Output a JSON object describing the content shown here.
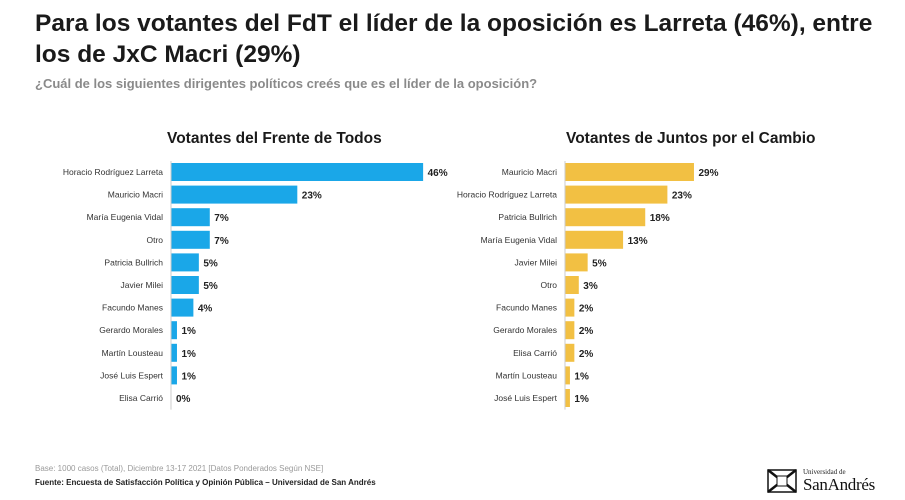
{
  "title": "Para los votantes del FdT el líder de la oposición es Larreta (46%), entre los de JxC Macri (29%)",
  "subtitle": "¿Cuál de los siguientes dirigentes políticos creés que es el líder de la oposición?",
  "chart_data": [
    {
      "type": "bar",
      "orientation": "horizontal",
      "title": "Votantes del Frente de Todos",
      "color": "#1aa7e8",
      "categories": [
        "Horacio Rodríguez Larreta",
        "Mauricio Macri",
        "María Eugenia Vidal",
        "Otro",
        "Patricia Bullrich",
        "Javier Milei",
        "Facundo Manes",
        "Gerardo Morales",
        "Martín Lousteau",
        "José Luis Espert",
        "Elisa Carrió"
      ],
      "values": [
        46,
        23,
        7,
        7,
        5,
        5,
        4,
        1,
        1,
        1,
        0
      ],
      "labels": [
        "46%",
        "23%",
        "7%",
        "7%",
        "5%",
        "5%",
        "4%",
        "1%",
        "1%",
        "1%",
        "0%"
      ],
      "unit": "%"
    },
    {
      "type": "bar",
      "orientation": "horizontal",
      "title": "Votantes de Juntos por el Cambio",
      "color": "#f2c043",
      "categories": [
        "Mauricio Macri",
        "Horacio Rodríguez Larreta",
        "Patricia Bullrich",
        "María Eugenia Vidal",
        "Javier Milei",
        "Otro",
        "Facundo Manes",
        "Gerardo Morales",
        "Elisa Carrió",
        "Martín Lousteau",
        "José Luis Espert"
      ],
      "values": [
        29,
        23,
        18,
        13,
        5,
        3,
        2,
        2,
        2,
        1,
        1
      ],
      "labels": [
        "29%",
        "23%",
        "18%",
        "13%",
        "5%",
        "3%",
        "2%",
        "2%",
        "2%",
        "1%",
        "1%"
      ],
      "unit": "%"
    }
  ],
  "footer": {
    "base": "Base: 1000 casos (Total), Diciembre 13-17 2021 [Datos Ponderados Según NSE]",
    "source": "Fuente: Encuesta de Satisfacción Política y Opinión Pública – Universidad de San Andrés"
  },
  "logo": {
    "top_text": "Universidad de",
    "main_text": "SanAndrés"
  }
}
